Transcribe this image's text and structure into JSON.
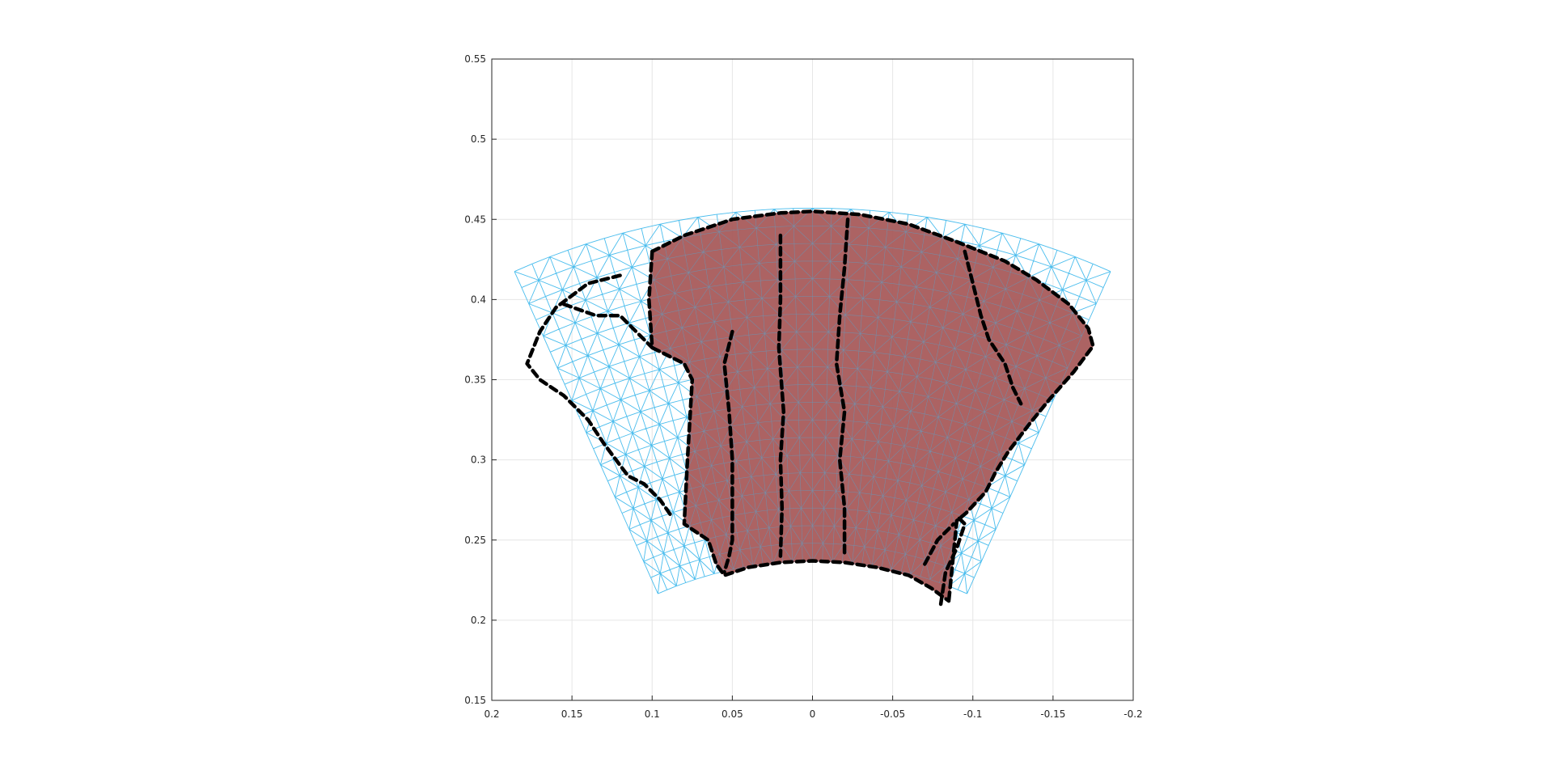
{
  "chart_data": {
    "type": "mesh-contour",
    "title": "",
    "xlabel": "",
    "ylabel": "",
    "xlim": [
      0.2,
      -0.2
    ],
    "ylim": [
      0.15,
      0.55
    ],
    "x_reversed": true,
    "grid": true,
    "x_ticks": [
      "0.2",
      "0.15",
      "0.1",
      "0.05",
      "0",
      "-0.05",
      "-0.1",
      "-0.15",
      "-0.2"
    ],
    "x_tick_values": [
      0.2,
      0.15,
      0.1,
      0.05,
      0,
      -0.05,
      -0.1,
      -0.15,
      -0.2
    ],
    "y_ticks": [
      "0.15",
      "0.2",
      "0.25",
      "0.3",
      "0.35",
      "0.4",
      "0.45",
      "0.5",
      "0.55"
    ],
    "y_tick_values": [
      0.15,
      0.2,
      0.25,
      0.3,
      0.35,
      0.4,
      0.45,
      0.5,
      0.55
    ],
    "mesh": {
      "shape": "annular-sector",
      "center": [
        0,
        0
      ],
      "inner_radius": 0.237,
      "outer_radius": 0.457,
      "theta_deg": [
        -24,
        24
      ],
      "color": "#4DBEEE"
    },
    "filled_region": {
      "color": "#A85B5B",
      "outline": [
        [
          0.1,
          0.43
        ],
        [
          0.08,
          0.44
        ],
        [
          0.05,
          0.45
        ],
        [
          0.02,
          0.454
        ],
        [
          0.0,
          0.455
        ],
        [
          -0.03,
          0.453
        ],
        [
          -0.06,
          0.447
        ],
        [
          -0.09,
          0.436
        ],
        [
          -0.12,
          0.424
        ],
        [
          -0.14,
          0.412
        ],
        [
          -0.16,
          0.397
        ],
        [
          -0.172,
          0.382
        ],
        [
          -0.175,
          0.371
        ],
        [
          -0.163,
          0.355
        ],
        [
          -0.148,
          0.338
        ],
        [
          -0.135,
          0.322
        ],
        [
          -0.122,
          0.305
        ],
        [
          -0.114,
          0.292
        ],
        [
          -0.108,
          0.28
        ],
        [
          -0.096,
          0.267
        ],
        [
          -0.09,
          0.262
        ],
        [
          -0.085,
          0.212
        ],
        [
          -0.074,
          0.22
        ],
        [
          -0.06,
          0.228
        ],
        [
          -0.04,
          0.233
        ],
        [
          -0.02,
          0.236
        ],
        [
          0.0,
          0.237
        ],
        [
          0.02,
          0.236
        ],
        [
          0.04,
          0.233
        ],
        [
          0.055,
          0.228
        ],
        [
          0.06,
          0.235
        ],
        [
          0.065,
          0.25
        ],
        [
          0.08,
          0.26
        ],
        [
          0.078,
          0.3
        ],
        [
          0.075,
          0.35
        ],
        [
          0.08,
          0.36
        ],
        [
          0.1,
          0.37
        ],
        [
          0.102,
          0.4
        ]
      ]
    },
    "contour_lines": {
      "color": "#000000",
      "style": "dashed",
      "lines": [
        [
          [
            0.1,
            0.43
          ],
          [
            0.102,
            0.4
          ],
          [
            0.1,
            0.37
          ],
          [
            0.08,
            0.36
          ],
          [
            0.075,
            0.35
          ],
          [
            0.078,
            0.3
          ],
          [
            0.08,
            0.26
          ],
          [
            0.065,
            0.25
          ],
          [
            0.06,
            0.235
          ],
          [
            0.055,
            0.228
          ],
          [
            0.04,
            0.233
          ],
          [
            0.02,
            0.236
          ],
          [
            0.0,
            0.237
          ],
          [
            -0.02,
            0.236
          ],
          [
            -0.04,
            0.233
          ],
          [
            -0.06,
            0.228
          ],
          [
            -0.074,
            0.22
          ],
          [
            -0.085,
            0.212
          ]
        ],
        [
          [
            0.1,
            0.43
          ],
          [
            0.08,
            0.44
          ],
          [
            0.05,
            0.45
          ],
          [
            0.02,
            0.454
          ],
          [
            0.0,
            0.455
          ],
          [
            -0.03,
            0.453
          ],
          [
            -0.06,
            0.447
          ],
          [
            -0.09,
            0.436
          ],
          [
            -0.12,
            0.424
          ],
          [
            -0.14,
            0.412
          ],
          [
            -0.16,
            0.397
          ],
          [
            -0.172,
            0.382
          ],
          [
            -0.175,
            0.371
          ],
          [
            -0.163,
            0.355
          ],
          [
            -0.148,
            0.338
          ],
          [
            -0.135,
            0.322
          ],
          [
            -0.122,
            0.305
          ],
          [
            -0.114,
            0.292
          ],
          [
            -0.108,
            0.28
          ],
          [
            -0.096,
            0.267
          ],
          [
            -0.09,
            0.262
          ],
          [
            -0.085,
            0.212
          ]
        ],
        [
          [
            0.12,
            0.415
          ],
          [
            0.14,
            0.41
          ],
          [
            0.16,
            0.395
          ],
          [
            0.17,
            0.38
          ],
          [
            0.178,
            0.36
          ],
          [
            0.17,
            0.35
          ],
          [
            0.155,
            0.34
          ],
          [
            0.14,
            0.325
          ],
          [
            0.13,
            0.31
          ],
          [
            0.115,
            0.29
          ],
          [
            0.105,
            0.285
          ],
          [
            0.095,
            0.275
          ],
          [
            0.088,
            0.265
          ]
        ],
        [
          [
            0.155,
            0.397
          ],
          [
            0.135,
            0.39
          ],
          [
            0.12,
            0.39
          ],
          [
            0.11,
            0.38
          ],
          [
            0.1,
            0.37
          ]
        ],
        [
          [
            0.05,
            0.38
          ],
          [
            0.055,
            0.36
          ],
          [
            0.052,
            0.33
          ],
          [
            0.05,
            0.3
          ],
          [
            0.05,
            0.27
          ],
          [
            0.05,
            0.25
          ],
          [
            0.052,
            0.24
          ],
          [
            0.055,
            0.23
          ]
        ],
        [
          [
            0.02,
            0.44
          ],
          [
            0.02,
            0.4
          ],
          [
            0.021,
            0.37
          ],
          [
            0.018,
            0.33
          ],
          [
            0.02,
            0.3
          ],
          [
            0.019,
            0.27
          ],
          [
            0.02,
            0.24
          ]
        ],
        [
          [
            -0.022,
            0.45
          ],
          [
            -0.02,
            0.42
          ],
          [
            -0.017,
            0.39
          ],
          [
            -0.015,
            0.36
          ],
          [
            -0.02,
            0.33
          ],
          [
            -0.017,
            0.3
          ],
          [
            -0.02,
            0.27
          ],
          [
            -0.02,
            0.24
          ]
        ],
        [
          [
            -0.095,
            0.43
          ],
          [
            -0.1,
            0.41
          ],
          [
            -0.105,
            0.39
          ],
          [
            -0.11,
            0.375
          ],
          [
            -0.12,
            0.36
          ],
          [
            -0.125,
            0.345
          ],
          [
            -0.13,
            0.335
          ]
        ],
        [
          [
            -0.08,
            0.21
          ],
          [
            -0.083,
            0.23
          ],
          [
            -0.09,
            0.245
          ],
          [
            -0.095,
            0.26
          ],
          [
            -0.09,
            0.265
          ]
        ],
        [
          [
            -0.07,
            0.235
          ],
          [
            -0.078,
            0.25
          ],
          [
            -0.088,
            0.26
          ]
        ]
      ]
    }
  }
}
